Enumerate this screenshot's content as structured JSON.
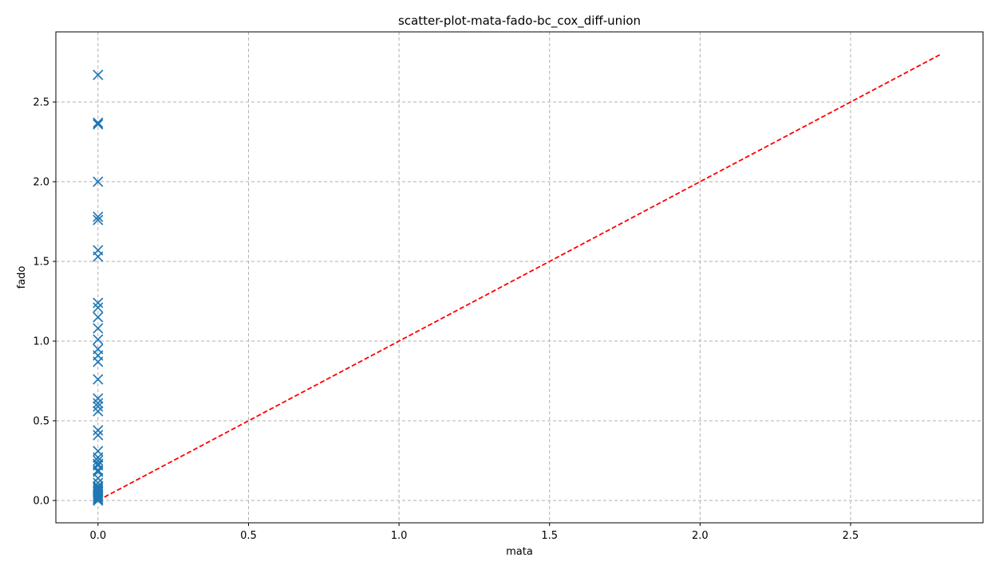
{
  "chart_data": {
    "type": "scatter",
    "title": "scatter-plot-mata-fado-bc_cox_diff-union",
    "xlabel": "mata",
    "ylabel": "fado",
    "xlim": [
      -0.14,
      2.94
    ],
    "ylim": [
      -0.14,
      2.94
    ],
    "x_ticks": [
      0.0,
      0.5,
      1.0,
      1.5,
      2.0,
      2.5
    ],
    "x_tick_labels": [
      "0.0",
      "0.5",
      "1.0",
      "1.5",
      "2.0",
      "2.5"
    ],
    "y_ticks": [
      0.0,
      0.5,
      1.0,
      1.5,
      2.0,
      2.5
    ],
    "y_tick_labels": [
      "0.0",
      "0.5",
      "1.0",
      "1.5",
      "2.0",
      "2.5"
    ],
    "grid": true,
    "legend": "none",
    "marker": "x",
    "marker_color": "#1f77b4",
    "series": [
      {
        "x": [
          0,
          0,
          0,
          0,
          0,
          0,
          0,
          0,
          0,
          0,
          0,
          0,
          0,
          0,
          0,
          0,
          0,
          0,
          0,
          0,
          0,
          0,
          0,
          0,
          0,
          0,
          0,
          0,
          0,
          0,
          0,
          0,
          0,
          0,
          0,
          0,
          0,
          0,
          0,
          0,
          0,
          0,
          0,
          0
        ],
        "y": [
          2.67,
          2.37,
          2.36,
          2.0,
          1.78,
          1.76,
          1.57,
          1.53,
          1.24,
          1.21,
          1.15,
          1.08,
          1.01,
          0.95,
          0.91,
          0.87,
          0.76,
          0.64,
          0.61,
          0.59,
          0.56,
          0.44,
          0.41,
          0.31,
          0.27,
          0.25,
          0.23,
          0.22,
          0.19,
          0.18,
          0.14,
          0.11,
          0.09,
          0.08,
          0.07,
          0.06,
          0.05,
          0.04,
          0.03,
          0.02,
          0.01,
          0.01,
          0.0,
          0.0
        ]
      }
    ],
    "reference_line": {
      "x": [
        0.0,
        2.8
      ],
      "y": [
        0.0,
        2.8
      ],
      "color": "#ff0000",
      "style": "dashed"
    }
  }
}
